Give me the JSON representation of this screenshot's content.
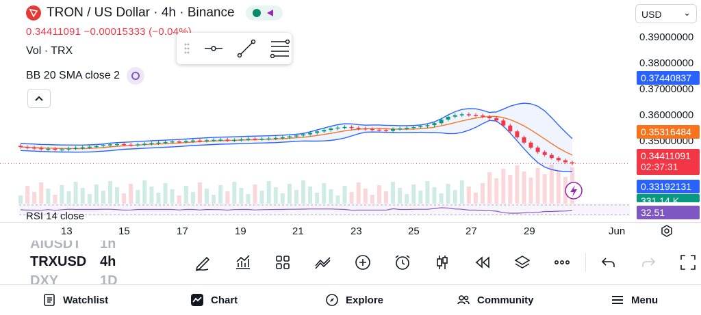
{
  "header": {
    "title": "TRON / US Dollar · 4h · Binance",
    "quote": "0.34411091  −0.00015333 (−0.04%)",
    "volume_label": "Vol · TRX",
    "bb_label": "BB 20 SMA close 2",
    "rsi_label": "RSI 14 close"
  },
  "currency": "USD",
  "price_axis": {
    "ticks": [
      "0.39000000",
      "0.38000000",
      "0.37000000",
      "0.36000000",
      "0.35000000"
    ],
    "labels": {
      "bb_upper": "0.37440837",
      "bb_basis": "0.35316484",
      "price": "0.34411091",
      "countdown": "02:37:31",
      "bb_lower": "0.33192131",
      "volume": "331.14 K",
      "rsi": "32.51"
    },
    "colors": {
      "upper": "#2962ff",
      "basis": "#f7731c",
      "price": "#f23645",
      "lower": "#2962ff",
      "volume": "#089981",
      "rsi": "#7e57c2"
    }
  },
  "time_axis": [
    "13",
    "15",
    "17",
    "19",
    "21",
    "23",
    "25",
    "27",
    "29",
    "Jun"
  ],
  "watchlist_symbols": {
    "prev": "AIUSDT",
    "current": "TRXUSD",
    "next": "DXY"
  },
  "timeframes": {
    "prev": "1h",
    "current": "4h",
    "next": "1D"
  },
  "nav": {
    "watchlist": "Watchlist",
    "chart": "Chart",
    "explore": "Explore",
    "community": "Community",
    "menu": "Menu"
  },
  "chart_data": {
    "type": "candlestick",
    "series_close": [
      0.3497,
      0.3495,
      0.3493,
      0.349,
      0.3491,
      0.3488,
      0.3489,
      0.3492,
      0.3494,
      0.3496,
      0.3498,
      0.35,
      0.3503,
      0.3506,
      0.3507,
      0.3505,
      0.3504,
      0.3506,
      0.3508,
      0.351,
      0.3512,
      0.3514,
      0.3516,
      0.3515,
      0.3517,
      0.3519,
      0.3518,
      0.352,
      0.3521,
      0.3522,
      0.352,
      0.3521,
      0.3523,
      0.3525,
      0.3524,
      0.3525,
      0.3526,
      0.3528,
      0.353,
      0.3533,
      0.3536,
      0.354,
      0.3545,
      0.355,
      0.3555,
      0.356,
      0.3563,
      0.3565,
      0.3562,
      0.356,
      0.3558,
      0.3556,
      0.3554,
      0.3552,
      0.3558,
      0.356,
      0.3562,
      0.3565,
      0.3568,
      0.3571,
      0.3578,
      0.359,
      0.36,
      0.3605,
      0.3608,
      0.3606,
      0.3604,
      0.36,
      0.3595,
      0.3587,
      0.357,
      0.355,
      0.353,
      0.3512,
      0.3495,
      0.348,
      0.347,
      0.346,
      0.3452,
      0.3445,
      0.3441
    ],
    "bb_upper_end": 0.37440837,
    "bb_basis_end": 0.35316484,
    "bb_lower_end": 0.33192131,
    "last_price": 0.34411091,
    "ylim": [
      0.33,
      0.395
    ]
  }
}
